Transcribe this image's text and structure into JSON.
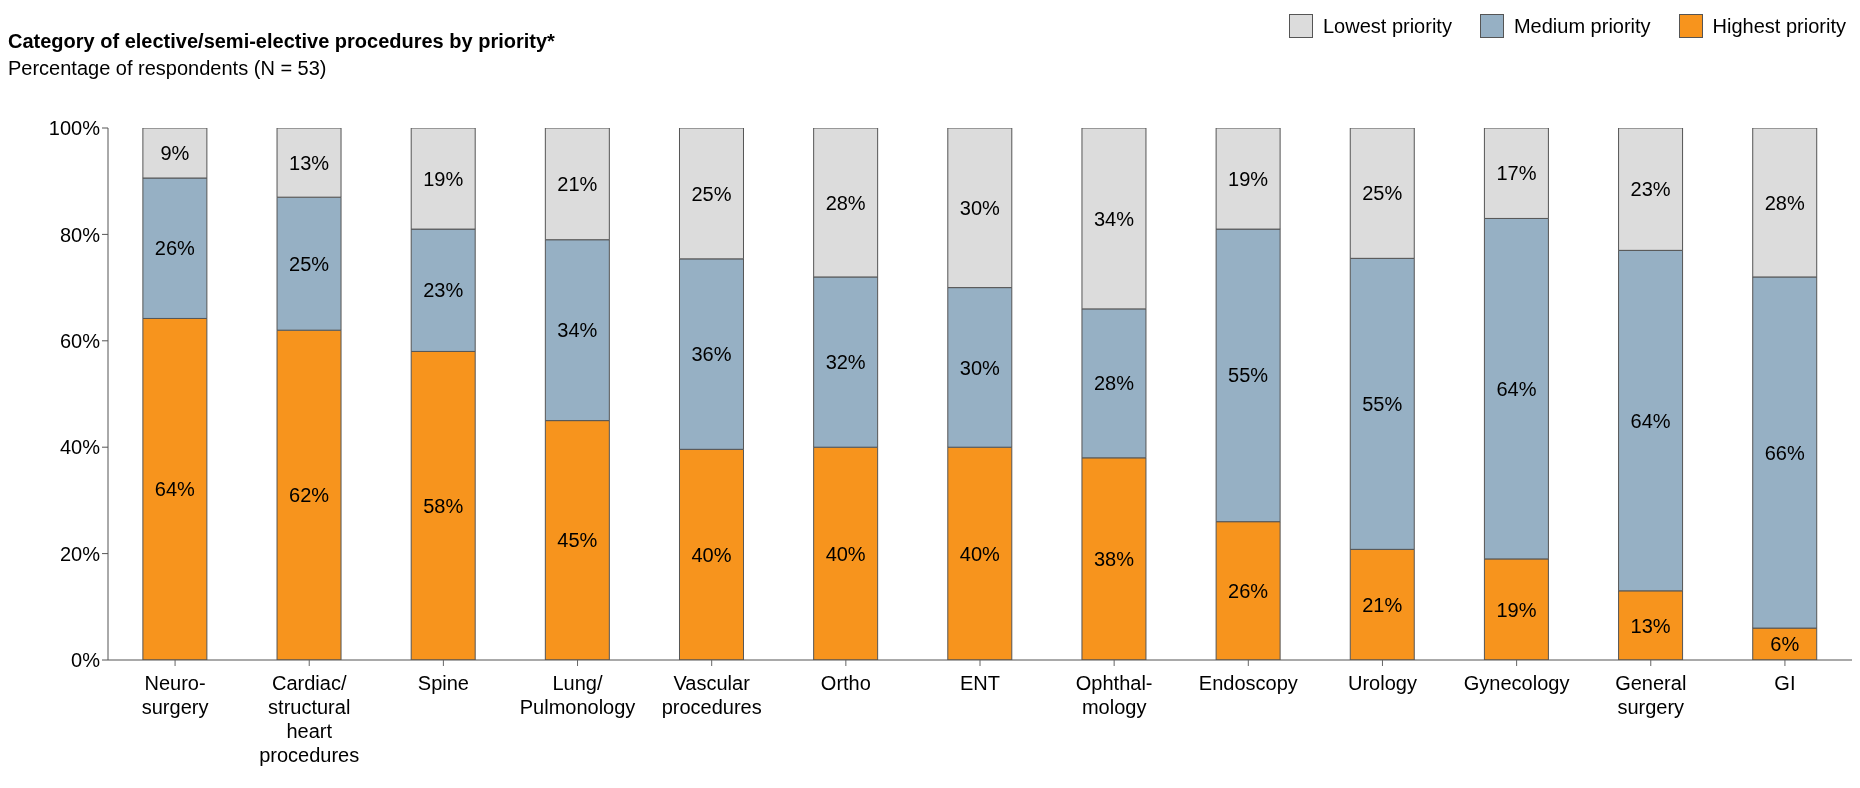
{
  "chart_data": {
    "type": "bar",
    "title": "Category of elective/semi-elective procedures by priority*",
    "subtitle": "Percentage of respondents (N = 53)",
    "categories": [
      "Neuro-\nsurgery",
      "Cardiac/\nstructural\nheart\nprocedures",
      "Spine",
      "Lung/\nPulmonology",
      "Vascular\nprocedures",
      "Ortho",
      "ENT",
      "Ophthal-\nmology",
      "Endoscopy",
      "Urology",
      "Gynecology",
      "General\nsurgery",
      "GI"
    ],
    "stacked": true,
    "legend": "top right",
    "grid": false,
    "ylim": [
      0,
      100
    ],
    "yticks": [
      {
        "value": 0,
        "label": "0%"
      },
      {
        "value": 20,
        "label": "20%"
      },
      {
        "value": 40,
        "label": "40%"
      },
      {
        "value": 60,
        "label": "60%"
      },
      {
        "value": 80,
        "label": "80%"
      },
      {
        "value": 100,
        "label": "100%"
      }
    ],
    "series": [
      {
        "name": "Highest priority",
        "color": "#f7941d",
        "values": [
          64.2,
          62,
          58,
          45,
          39.6,
          40,
          40,
          38,
          26,
          20.8,
          19,
          13,
          6
        ],
        "value_labels": [
          "64%",
          "62%",
          "58%",
          "45%",
          "40%",
          "40%",
          "40%",
          "38%",
          "26%",
          "21%",
          "19%",
          "13%",
          "6%"
        ]
      },
      {
        "name": "Medium priority",
        "color": "#96b0c4",
        "values": [
          26.4,
          25,
          23,
          34,
          35.8,
          32,
          30,
          28,
          55,
          54.7,
          64,
          64,
          66
        ],
        "value_labels": [
          "26%",
          "25%",
          "23%",
          "34%",
          "36%",
          "32%",
          "30%",
          "28%",
          "55%",
          "55%",
          "64%",
          "64%",
          "66%"
        ]
      },
      {
        "name": "Lowest priority",
        "color": "#dcdcdc",
        "values": [
          9.4,
          13,
          19,
          21,
          24.6,
          28,
          30,
          34,
          19,
          24.5,
          17,
          23,
          28
        ],
        "value_labels": [
          "9%",
          "13%",
          "19%",
          "21%",
          "25%",
          "28%",
          "30%",
          "34%",
          "19%",
          "25%",
          "17%",
          "23%",
          "28%"
        ]
      }
    ]
  }
}
